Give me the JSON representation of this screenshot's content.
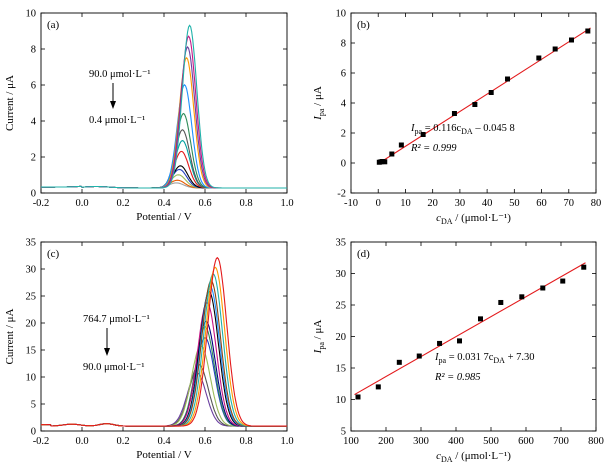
{
  "chart_data": [
    {
      "panel": "(a)",
      "type": "line",
      "xlabel": "Potential / V",
      "ylabel": "Current / μA",
      "xlim": [
        -0.2,
        1.0
      ],
      "ylim": [
        0,
        10
      ],
      "xticks": [
        -0.2,
        0.0,
        0.2,
        0.4,
        0.6,
        0.8,
        1.0
      ],
      "yticks": [
        0,
        2,
        4,
        6,
        8,
        10
      ],
      "tick_labels_x": [
        "-0.2",
        "0.0",
        "0.2",
        "0.4",
        "0.6",
        "0.8",
        "1.0"
      ],
      "tick_labels_y": [
        "0",
        "2",
        "4",
        "6",
        "8",
        "10"
      ],
      "annotation_top": "90.0 μmol·L⁻¹",
      "annotation_bottom": "0.4 μmol·L⁻¹",
      "series": [
        {
          "color": "#a0a0a0",
          "values": [
            [
              0.46,
              0.45
            ]
          ]
        },
        {
          "color": "#e85c00",
          "values": [
            [
              0.465,
              0.6
            ]
          ]
        },
        {
          "color": "#9bbb59",
          "values": [
            [
              0.47,
              0.9
            ]
          ]
        },
        {
          "color": "#1f3fbf",
          "values": [
            [
              0.475,
              1.2
            ]
          ]
        },
        {
          "color": "#000000",
          "values": [
            [
              0.48,
              1.4
            ]
          ]
        },
        {
          "color": "#e31a1c",
          "values": [
            [
              0.485,
              2.2
            ]
          ]
        },
        {
          "color": "#00a0a0",
          "values": [
            [
              0.49,
              2.8
            ]
          ]
        },
        {
          "color": "#555555",
          "values": [
            [
              0.49,
              3.4
            ]
          ]
        },
        {
          "color": "#2e8b57",
          "values": [
            [
              0.495,
              4.3
            ]
          ]
        },
        {
          "color": "#1e90ff",
          "values": [
            [
              0.5,
              5.9
            ]
          ]
        },
        {
          "color": "#ff9900",
          "values": [
            [
              0.51,
              7.4
            ]
          ]
        },
        {
          "color": "#6a3fa0",
          "values": [
            [
              0.515,
              8.0
            ]
          ]
        },
        {
          "color": "#c71585",
          "values": [
            [
              0.52,
              8.6
            ]
          ]
        },
        {
          "color": "#20b2aa",
          "values": [
            [
              0.525,
              9.2
            ]
          ]
        }
      ]
    },
    {
      "panel": "(b)",
      "type": "scatter",
      "xlabel_main": "c",
      "xlabel_sub": "DA",
      "xlabel_unit": " / (μmol·L⁻¹)",
      "ylabel_main": "I",
      "ylabel_sub": "pa",
      "ylabel_unit": " / μA",
      "xlim": [
        -10,
        80
      ],
      "ylim": [
        -2,
        10
      ],
      "tick_labels_x": [
        "-10",
        "0",
        "10",
        "20",
        "30",
        "40",
        "50",
        "60",
        "70",
        "80"
      ],
      "tick_labels_y": [
        "-2",
        "0",
        "2",
        "4",
        "6",
        "8",
        "10"
      ],
      "xticks": [
        -10,
        0,
        10,
        20,
        30,
        40,
        50,
        60,
        70,
        80
      ],
      "yticks": [
        -2,
        0,
        2,
        4,
        6,
        8,
        10
      ],
      "eq_lead": "I",
      "eq_lead_sub": "pa",
      "eq_mid": " = 0.116c",
      "eq_mid_sub": "DA",
      "eq_tail": " – 0.045 8",
      "r2": "R² = 0.999",
      "fit": {
        "slope": 0.116,
        "intercept": -0.0458,
        "x_range": [
          0,
          78
        ]
      },
      "x": [
        0.4,
        1.0,
        1.6,
        2.4,
        5,
        8.5,
        16.5,
        28,
        35.5,
        41.5,
        47.5,
        59,
        65,
        71,
        77
      ],
      "y": [
        0.05,
        0.08,
        0.1,
        0.08,
        0.6,
        1.2,
        1.9,
        3.3,
        3.9,
        4.7,
        5.6,
        7.0,
        7.6,
        8.2,
        8.8
      ]
    },
    {
      "panel": "(c)",
      "type": "line",
      "xlabel": "Potential / V",
      "ylabel": "Current / μA",
      "xlim": [
        -0.2,
        1.0
      ],
      "ylim": [
        0,
        35
      ],
      "xticks": [
        -0.2,
        0.0,
        0.2,
        0.4,
        0.6,
        0.8,
        1.0
      ],
      "yticks": [
        0,
        5,
        10,
        15,
        20,
        25,
        30,
        35
      ],
      "tick_labels_x": [
        "-0.2",
        "0.0",
        "0.2",
        "0.4",
        "0.6",
        "0.8",
        "1.0"
      ],
      "tick_labels_y": [
        "0",
        "5",
        "10",
        "15",
        "20",
        "25",
        "30",
        "35"
      ],
      "annotation_top": "764.7 μmol·L⁻¹",
      "annotation_bottom": "90.0 μmol·L⁻¹",
      "series": [
        {
          "color": "#6a3fa0",
          "values": [
            [
              0.56,
              10.5
            ]
          ]
        },
        {
          "color": "#555555",
          "values": [
            [
              0.57,
              12.0
            ]
          ]
        },
        {
          "color": "#9bbb59",
          "values": [
            [
              0.58,
              15.5
            ]
          ]
        },
        {
          "color": "#1f3fbf",
          "values": [
            [
              0.6,
              17.0
            ]
          ]
        },
        {
          "color": "#2e8b57",
          "values": [
            [
              0.6,
              19.0
            ]
          ]
        },
        {
          "color": "#000080",
          "values": [
            [
              0.605,
              20.0
            ]
          ]
        },
        {
          "color": "#c71585",
          "values": [
            [
              0.61,
              23.5
            ]
          ]
        },
        {
          "color": "#000000",
          "values": [
            [
              0.62,
              25.5
            ]
          ]
        },
        {
          "color": "#1e90ff",
          "values": [
            [
              0.625,
              26.5
            ]
          ]
        },
        {
          "color": "#8b4513",
          "values": [
            [
              0.63,
              27.5
            ]
          ]
        },
        {
          "color": "#20b2aa",
          "values": [
            [
              0.64,
              28.8
            ]
          ]
        },
        {
          "color": "#ff9900",
          "values": [
            [
              0.65,
              30.0
            ]
          ]
        },
        {
          "color": "#e31a1c",
          "values": [
            [
              0.66,
              31.8
            ]
          ]
        }
      ]
    },
    {
      "panel": "(d)",
      "type": "scatter",
      "xlabel_main": "c",
      "xlabel_sub": "DA",
      "xlabel_unit": " / (μmol·L⁻¹)",
      "ylabel_main": "I",
      "ylabel_sub": "pa",
      "ylabel_unit": " / μA",
      "xlim": [
        100,
        800
      ],
      "ylim": [
        5,
        35
      ],
      "tick_labels_x": [
        "100",
        "200",
        "300",
        "400",
        "500",
        "600",
        "700",
        "800"
      ],
      "tick_labels_y": [
        "5",
        "10",
        "15",
        "20",
        "25",
        "30",
        "35"
      ],
      "xticks": [
        100,
        200,
        300,
        400,
        500,
        600,
        700,
        800
      ],
      "yticks": [
        5,
        10,
        15,
        20,
        25,
        30,
        35
      ],
      "eq_lead": "I",
      "eq_lead_sub": "pa",
      "eq_mid": " = 0.031 7c",
      "eq_mid_sub": "DA",
      "eq_tail": " + 7.30",
      "r2": "R² = 0.985",
      "fit": {
        "slope": 0.0317,
        "intercept": 7.3,
        "x_range": [
          110,
          770
        ]
      },
      "x": [
        120,
        178,
        238,
        295,
        353,
        410,
        470,
        528,
        588,
        648,
        705,
        765
      ],
      "y": [
        10.4,
        12.0,
        15.9,
        16.9,
        18.9,
        19.3,
        22.8,
        25.4,
        26.3,
        27.7,
        28.8,
        31.0
      ]
    }
  ],
  "colors": {
    "fit_line": "#e31a1c",
    "axis": "#000000"
  }
}
